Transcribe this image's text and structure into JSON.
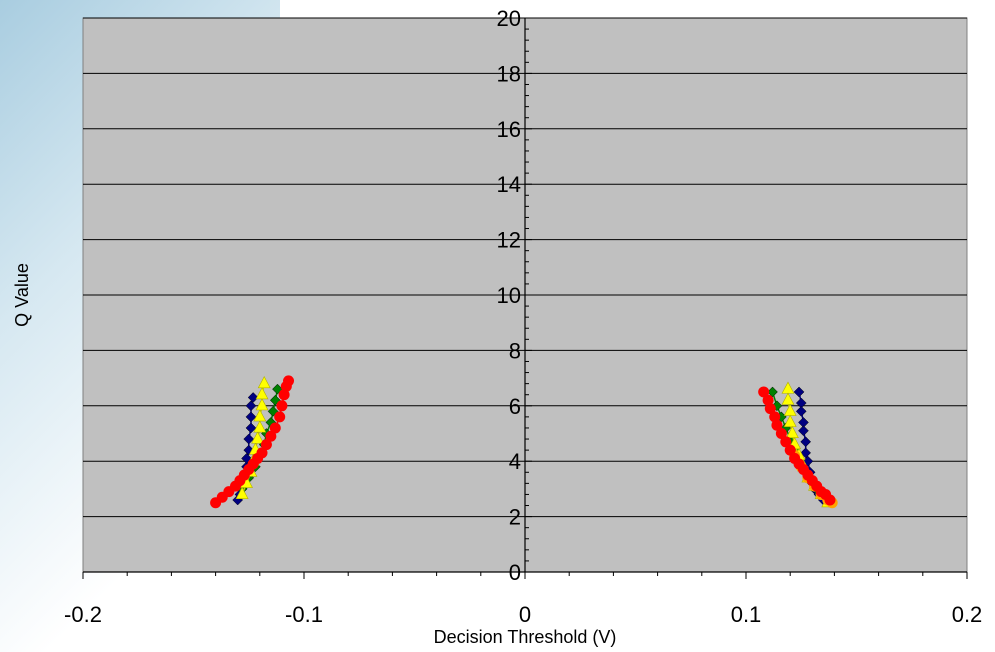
{
  "chart_data": {
    "type": "scatter",
    "title": "",
    "xlabel": "Decision Threshold (V)",
    "ylabel": "Q Value",
    "xlim": [
      -0.2,
      0.2
    ],
    "ylim": [
      0,
      20
    ],
    "x_ticks": [
      "-0.2",
      "-0.1",
      "0",
      "0.1",
      "0.2"
    ],
    "y_ticks": [
      "0",
      "2",
      "4",
      "6",
      "8",
      "10",
      "12",
      "14",
      "16",
      "18",
      "20"
    ],
    "grid": "horizontal",
    "legend": "none",
    "plot_background": "#c0c0c0",
    "series": [
      {
        "color": "#000080",
        "marker": "diamond",
        "points": [
          [
            -0.13,
            2.6
          ],
          [
            -0.129,
            2.8
          ],
          [
            -0.128,
            3.0
          ],
          [
            -0.127,
            3.2
          ],
          [
            -0.127,
            3.5
          ],
          [
            -0.126,
            3.8
          ],
          [
            -0.126,
            4.1
          ],
          [
            -0.125,
            4.4
          ],
          [
            -0.125,
            4.8
          ],
          [
            -0.124,
            5.2
          ],
          [
            -0.124,
            5.6
          ],
          [
            -0.124,
            6.0
          ],
          [
            -0.123,
            6.3
          ],
          [
            0.124,
            6.5
          ],
          [
            0.125,
            6.1
          ],
          [
            0.125,
            5.8
          ],
          [
            0.126,
            5.4
          ],
          [
            0.126,
            5.1
          ],
          [
            0.127,
            4.7
          ],
          [
            0.127,
            4.3
          ],
          [
            0.128,
            4.0
          ],
          [
            0.129,
            3.6
          ],
          [
            0.13,
            3.3
          ],
          [
            0.131,
            3.0
          ],
          [
            0.133,
            2.8
          ],
          [
            0.135,
            2.6
          ]
        ]
      },
      {
        "color": "#008000",
        "marker": "diamond",
        "points": [
          [
            -0.128,
            3.0
          ],
          [
            -0.125,
            3.4
          ],
          [
            -0.122,
            3.8
          ],
          [
            -0.12,
            4.2
          ],
          [
            -0.118,
            4.6
          ],
          [
            -0.117,
            5.0
          ],
          [
            -0.115,
            5.4
          ],
          [
            -0.114,
            5.8
          ],
          [
            -0.113,
            6.2
          ],
          [
            -0.112,
            6.6
          ],
          [
            0.112,
            6.5
          ],
          [
            0.114,
            6.0
          ],
          [
            0.116,
            5.6
          ],
          [
            0.118,
            5.2
          ],
          [
            0.12,
            4.8
          ],
          [
            0.122,
            4.4
          ],
          [
            0.124,
            4.0
          ],
          [
            0.127,
            3.6
          ],
          [
            0.13,
            3.2
          ],
          [
            0.133,
            2.9
          ],
          [
            0.136,
            2.7
          ]
        ]
      },
      {
        "color": "#ffff00",
        "marker": "triangle",
        "points": [
          [
            -0.128,
            2.8
          ],
          [
            -0.126,
            3.2
          ],
          [
            -0.124,
            3.6
          ],
          [
            -0.123,
            4.0
          ],
          [
            -0.122,
            4.4
          ],
          [
            -0.121,
            4.8
          ],
          [
            -0.12,
            5.2
          ],
          [
            -0.12,
            5.6
          ],
          [
            -0.119,
            6.0
          ],
          [
            -0.119,
            6.4
          ],
          [
            -0.118,
            6.8
          ],
          [
            0.119,
            6.6
          ],
          [
            0.119,
            6.2
          ],
          [
            0.12,
            5.8
          ],
          [
            0.12,
            5.4
          ],
          [
            0.121,
            5.0
          ],
          [
            0.122,
            4.6
          ],
          [
            0.124,
            4.2
          ],
          [
            0.126,
            3.8
          ],
          [
            0.128,
            3.4
          ],
          [
            0.131,
            3.1
          ],
          [
            0.134,
            2.8
          ],
          [
            0.137,
            2.5
          ]
        ]
      },
      {
        "color": "#ffa500",
        "marker": "circle",
        "points": [
          [
            0.122,
            4.2
          ],
          [
            0.125,
            3.8
          ],
          [
            0.128,
            3.4
          ],
          [
            0.131,
            3.1
          ],
          [
            0.134,
            2.8
          ],
          [
            0.137,
            2.6
          ],
          [
            0.139,
            2.5
          ]
        ]
      },
      {
        "color": "#ff0000",
        "marker": "circle",
        "points": [
          [
            -0.14,
            2.5
          ],
          [
            -0.137,
            2.7
          ],
          [
            -0.134,
            2.9
          ],
          [
            -0.131,
            3.1
          ],
          [
            -0.129,
            3.3
          ],
          [
            -0.127,
            3.5
          ],
          [
            -0.125,
            3.7
          ],
          [
            -0.123,
            3.9
          ],
          [
            -0.121,
            4.1
          ],
          [
            -0.119,
            4.3
          ],
          [
            -0.117,
            4.6
          ],
          [
            -0.115,
            4.9
          ],
          [
            -0.113,
            5.2
          ],
          [
            -0.111,
            5.6
          ],
          [
            -0.11,
            6.0
          ],
          [
            -0.109,
            6.4
          ],
          [
            -0.108,
            6.7
          ],
          [
            -0.107,
            6.9
          ],
          [
            0.108,
            6.5
          ],
          [
            0.11,
            6.2
          ],
          [
            0.111,
            5.9
          ],
          [
            0.113,
            5.6
          ],
          [
            0.114,
            5.3
          ],
          [
            0.116,
            5.0
          ],
          [
            0.118,
            4.7
          ],
          [
            0.12,
            4.4
          ],
          [
            0.122,
            4.1
          ],
          [
            0.124,
            3.9
          ],
          [
            0.126,
            3.7
          ],
          [
            0.128,
            3.5
          ],
          [
            0.13,
            3.3
          ],
          [
            0.132,
            3.1
          ],
          [
            0.134,
            2.9
          ],
          [
            0.136,
            2.8
          ],
          [
            0.138,
            2.6
          ]
        ]
      }
    ]
  }
}
